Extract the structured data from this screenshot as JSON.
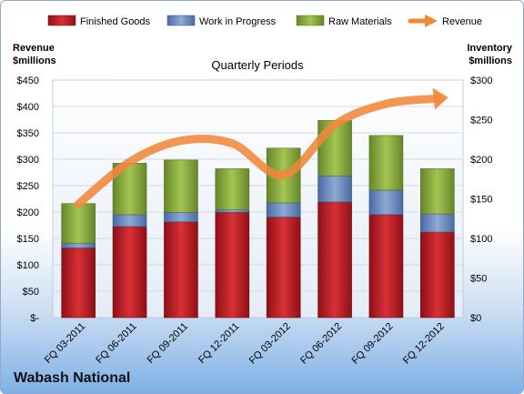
{
  "company": "Wabash National",
  "colors": {
    "finished_goods": "#c0202a",
    "work_in_progress": "#6f8fc4",
    "raw_materials": "#8fb13f",
    "revenue": "#f0883a"
  },
  "chart_data": {
    "type": "bar",
    "stacked": true,
    "title": "Quarterly Periods",
    "ylabel_left": "Revenue\n$millions",
    "ylabel_right": "Inventory\n$millions",
    "categories": [
      "FQ 03-2011",
      "FQ 06-2011",
      "FQ 09-2011",
      "FQ 12-2011",
      "FQ 03-2012",
      "FQ 06-2012",
      "FQ 09-2012",
      "FQ 12-2012"
    ],
    "left_axis": {
      "min": 0,
      "max": 450,
      "step": 50,
      "ticks": [
        "$-",
        "$50",
        "$100",
        "$150",
        "$200",
        "$250",
        "$300",
        "$350",
        "$400",
        "$450"
      ]
    },
    "right_axis": {
      "min": 0,
      "max": 300,
      "step": 50,
      "ticks": [
        "$0",
        "$50",
        "$100",
        "$150",
        "$200",
        "$250",
        "$300"
      ]
    },
    "series": [
      {
        "name": "Finished Goods",
        "axis": "right",
        "type": "bar",
        "values": [
          88,
          115,
          121,
          133,
          127,
          146,
          130,
          108
        ]
      },
      {
        "name": "Work in Progress",
        "axis": "right",
        "type": "bar",
        "values": [
          6,
          15,
          12,
          3,
          18,
          33,
          31,
          23
        ]
      },
      {
        "name": "Raw Materials",
        "axis": "right",
        "type": "bar",
        "values": [
          50,
          65,
          66,
          52,
          69,
          70,
          69,
          57
        ]
      },
      {
        "name": "Revenue",
        "axis": "left",
        "type": "line",
        "values": [
          215,
          295,
          335,
          330,
          270,
          365,
          405,
          415
        ]
      }
    ],
    "legend_position": "top",
    "grid": true
  }
}
